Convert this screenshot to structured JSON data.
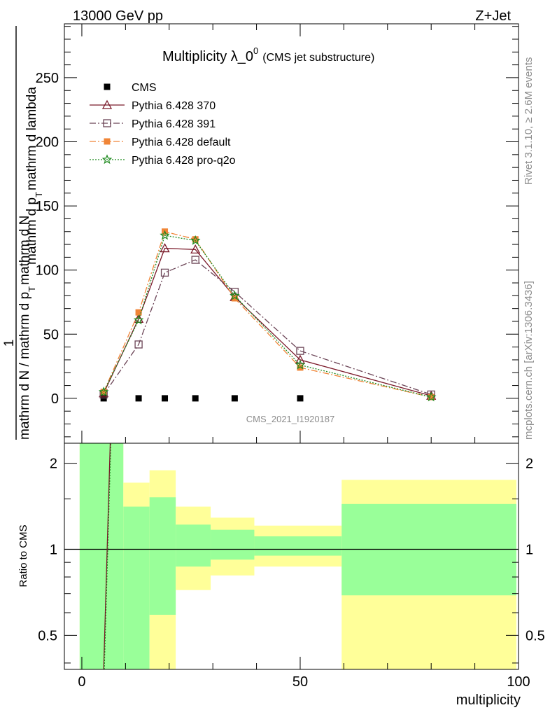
{
  "header": {
    "left": "13000 GeV pp",
    "right": "Z+Jet"
  },
  "side_text": {
    "rivet": "Rivet 3.1.10, ≥ 2.6M events",
    "mcplots": "mcplots.cern.ch [arXiv:1306.3436]"
  },
  "chart_data": [
    {
      "type": "line",
      "title_main": "Multiplicity λ_0",
      "title_sup": "0",
      "title_sub": "(CMS jet substructure)",
      "ylabel_1": "1",
      "ylabel_2": "mathrm d N / mathrm d p",
      "ylabel_2_sub": "T",
      "ylabel_2_tail": "mathrm d N",
      "ylabel_3": "mathrm d p",
      "ylabel_3_sub": "T",
      "ylabel_3_tail": "mathrm d lambda",
      "watermark": "CMS_2021_I1920187",
      "xlim": [
        -4,
        100
      ],
      "ylim": [
        -35,
        292
      ],
      "yticks": [
        0,
        50,
        100,
        150,
        200,
        250
      ],
      "legend_position": "top-left",
      "series": [
        {
          "name": "CMS",
          "color": "#000000",
          "marker": "filled-square",
          "line": "none",
          "x": [
            5,
            13,
            19,
            26,
            35,
            50
          ],
          "y": [
            0,
            0,
            0,
            0,
            0,
            0
          ]
        },
        {
          "name": "Pythia 6.428 370",
          "color": "#7b1a2a",
          "marker": "open-triangle",
          "line": "solid",
          "x": [
            5,
            13,
            19,
            26,
            35,
            50,
            80
          ],
          "y": [
            4,
            62,
            117,
            116,
            79,
            30,
            2
          ]
        },
        {
          "name": "Pythia 6.428 391",
          "color": "#6b4456",
          "marker": "open-square",
          "line": "dash-dot",
          "x": [
            5,
            13,
            19,
            26,
            35,
            50,
            80
          ],
          "y": [
            3,
            42,
            98,
            108,
            83,
            37,
            3
          ]
        },
        {
          "name": "Pythia 6.428 default",
          "color": "#f08537",
          "marker": "filled-square",
          "line": "dash-dot",
          "x": [
            5,
            13,
            19,
            26,
            35,
            50,
            80
          ],
          "y": [
            5,
            67,
            130,
            124,
            78,
            24,
            1
          ]
        },
        {
          "name": "Pythia 6.428 pro-q2o",
          "color": "#1f8a1f",
          "marker": "star",
          "line": "dotted",
          "x": [
            5,
            13,
            19,
            26,
            35,
            50,
            80
          ],
          "y": [
            5,
            61,
            127,
            123,
            80,
            26,
            1
          ]
        }
      ]
    },
    {
      "type": "area",
      "ylabel": "Ratio to CMS",
      "xlabel": "multiplicity",
      "xlim": [
        -4,
        100
      ],
      "ylim": [
        0.38,
        2.35
      ],
      "yticks": [
        0.5,
        1,
        2
      ],
      "ytick_labels": [
        "0.5",
        "1",
        "2"
      ],
      "xticks": [
        0,
        50,
        100
      ],
      "bands": [
        {
          "x0": -0.5,
          "x1": 9.5,
          "inner": [
            0.38,
            2.35
          ],
          "outer": [
            0.38,
            2.35
          ]
        },
        {
          "x0": 9.5,
          "x1": 15.5,
          "inner": [
            0.38,
            1.41
          ],
          "outer": [
            0.72,
            1.71
          ]
        },
        {
          "x0": 15.5,
          "x1": 21.5,
          "inner": [
            0.59,
            1.52
          ],
          "outer": [
            0.38,
            1.89
          ]
        },
        {
          "x0": 21.5,
          "x1": 29.5,
          "inner": [
            0.87,
            1.22
          ],
          "outer": [
            0.72,
            1.41
          ]
        },
        {
          "x0": 29.5,
          "x1": 39.5,
          "inner": [
            0.92,
            1.17
          ],
          "outer": [
            0.81,
            1.29
          ]
        },
        {
          "x0": 39.5,
          "x1": 59.5,
          "inner": [
            0.95,
            1.11
          ],
          "outer": [
            0.87,
            1.21
          ]
        },
        {
          "x0": 59.5,
          "x1": 99.5,
          "inner": [
            0.69,
            1.44
          ],
          "outer": [
            0.38,
            1.75
          ]
        }
      ],
      "band_colors": {
        "inner": "#99ff99",
        "outer": "#ffff99"
      },
      "steep_line": {
        "color": "#7b1a2a",
        "x": [
          5,
          6.5
        ],
        "y": [
          0.38,
          2.35
        ]
      }
    }
  ]
}
